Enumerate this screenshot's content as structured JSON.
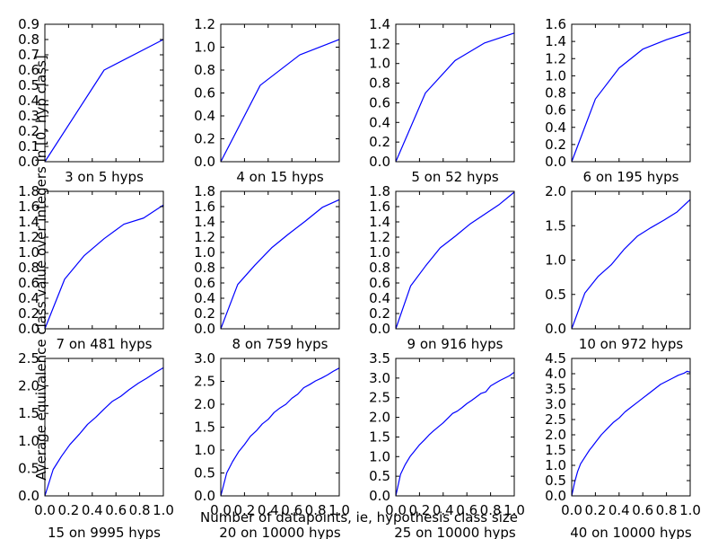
{
  "chart_data": {
    "type": "line",
    "layout": "3x4 grid of subplots",
    "xlabel": "Number of datapoints, ie, hypothesis class size",
    "ylabel": "Average equivalence class value over integers in [0, hyp class]",
    "xlim": [
      0.0,
      1.0
    ],
    "x_ticks": [
      "0.0",
      "0.2",
      "0.4",
      "0.6",
      "0.8",
      "1.0"
    ],
    "series_color": "#0000ff",
    "panels": [
      {
        "title": "3 on 5 hyps",
        "ylim": [
          0.0,
          0.9
        ],
        "y_ticks": [
          "0.0",
          "0.1",
          "0.2",
          "0.3",
          "0.4",
          "0.5",
          "0.6",
          "0.7",
          "0.8",
          "0.9"
        ],
        "x": [
          0.0,
          0.5,
          1.0
        ],
        "y": [
          0.0,
          0.6,
          0.8
        ]
      },
      {
        "title": "4 on 15 hyps",
        "ylim": [
          0.0,
          1.2
        ],
        "y_ticks": [
          "0.0",
          "0.2",
          "0.4",
          "0.6",
          "0.8",
          "1.0",
          "1.2"
        ],
        "x": [
          0.0,
          0.333,
          0.667,
          1.0
        ],
        "y": [
          0.0,
          0.667,
          0.933,
          1.067
        ]
      },
      {
        "title": "5 on 52 hyps",
        "ylim": [
          0.0,
          1.4
        ],
        "y_ticks": [
          "0.0",
          "0.2",
          "0.4",
          "0.6",
          "0.8",
          "1.0",
          "1.2",
          "1.4"
        ],
        "x": [
          0.0,
          0.25,
          0.5,
          0.75,
          1.0
        ],
        "y": [
          0.0,
          0.7,
          1.03,
          1.21,
          1.31
        ]
      },
      {
        "title": "6 on 195 hyps",
        "ylim": [
          0.0,
          1.6
        ],
        "y_ticks": [
          "0.0",
          "0.2",
          "0.4",
          "0.6",
          "0.8",
          "1.0",
          "1.2",
          "1.4",
          "1.6"
        ],
        "x": [
          0.0,
          0.2,
          0.4,
          0.6,
          0.8,
          1.0
        ],
        "y": [
          0.0,
          0.73,
          1.09,
          1.31,
          1.42,
          1.51
        ]
      },
      {
        "title": "7 on 481 hyps",
        "ylim": [
          0.0,
          1.8
        ],
        "y_ticks": [
          "0.0",
          "0.2",
          "0.4",
          "0.6",
          "0.8",
          "1.0",
          "1.2",
          "1.4",
          "1.6",
          "1.8"
        ],
        "x": [
          0.0,
          0.167,
          0.333,
          0.5,
          0.667,
          0.833,
          1.0
        ],
        "y": [
          0.0,
          0.65,
          0.96,
          1.18,
          1.37,
          1.45,
          1.62
        ]
      },
      {
        "title": "8 on 759 hyps",
        "ylim": [
          0.0,
          1.8
        ],
        "y_ticks": [
          "0.0",
          "0.2",
          "0.4",
          "0.6",
          "0.8",
          "1.0",
          "1.2",
          "1.4",
          "1.6",
          "1.8"
        ],
        "x": [
          0.0,
          0.143,
          0.286,
          0.429,
          0.571,
          0.714,
          0.857,
          1.0
        ],
        "y": [
          0.0,
          0.58,
          0.83,
          1.06,
          1.24,
          1.41,
          1.59,
          1.69
        ]
      },
      {
        "title": "9 on 916 hyps",
        "ylim": [
          0.0,
          1.8
        ],
        "y_ticks": [
          "0.0",
          "0.2",
          "0.4",
          "0.6",
          "0.8",
          "1.0",
          "1.2",
          "1.4",
          "1.6",
          "1.8"
        ],
        "x": [
          0.0,
          0.125,
          0.25,
          0.375,
          0.5,
          0.625,
          0.75,
          0.875,
          1.0
        ],
        "y": [
          0.0,
          0.56,
          0.82,
          1.06,
          1.21,
          1.37,
          1.5,
          1.63,
          1.79
        ]
      },
      {
        "title": "10 on 972 hyps",
        "ylim": [
          0.0,
          2.0
        ],
        "y_ticks": [
          "0.0",
          "0.5",
          "1.0",
          "1.5",
          "2.0"
        ],
        "x": [
          0.0,
          0.111,
          0.222,
          0.333,
          0.444,
          0.556,
          0.667,
          0.778,
          0.889,
          1.0
        ],
        "y": [
          0.0,
          0.52,
          0.76,
          0.93,
          1.16,
          1.35,
          1.47,
          1.58,
          1.7,
          1.88
        ]
      },
      {
        "title": "15 on 9995 hyps",
        "ylim": [
          0.0,
          2.5
        ],
        "y_ticks": [
          "0.0",
          "0.5",
          "1.0",
          "1.5",
          "2.0",
          "2.5"
        ],
        "x": [
          0.0,
          0.07,
          0.14,
          0.21,
          0.29,
          0.36,
          0.43,
          0.5,
          0.57,
          0.64,
          0.71,
          0.79,
          0.86,
          0.93,
          1.0
        ],
        "y": [
          0.0,
          0.48,
          0.72,
          0.93,
          1.12,
          1.3,
          1.43,
          1.58,
          1.72,
          1.81,
          1.93,
          2.05,
          2.14,
          2.24,
          2.33
        ]
      },
      {
        "title": "20 on 10000 hyps",
        "ylim": [
          0.0,
          3.0
        ],
        "y_ticks": [
          "0.0",
          "0.5",
          "1.0",
          "1.5",
          "2.0",
          "2.5",
          "3.0"
        ],
        "x": [
          0.0,
          0.05,
          0.1,
          0.15,
          0.2,
          0.25,
          0.3,
          0.35,
          0.4,
          0.45,
          0.5,
          0.55,
          0.6,
          0.65,
          0.7,
          0.75,
          0.8,
          0.85,
          0.9,
          0.95,
          1.0
        ],
        "y": [
          0.0,
          0.5,
          0.75,
          0.96,
          1.12,
          1.3,
          1.42,
          1.57,
          1.67,
          1.82,
          1.92,
          2.0,
          2.13,
          2.22,
          2.36,
          2.43,
          2.51,
          2.57,
          2.64,
          2.72,
          2.79
        ]
      },
      {
        "title": "25 on 10000 hyps",
        "ylim": [
          0.0,
          3.5
        ],
        "y_ticks": [
          "0.0",
          "0.5",
          "1.0",
          "1.5",
          "2.0",
          "2.5",
          "3.0",
          "3.5"
        ],
        "x": [
          0.0,
          0.04,
          0.08,
          0.12,
          0.16,
          0.2,
          0.24,
          0.28,
          0.32,
          0.36,
          0.4,
          0.44,
          0.48,
          0.52,
          0.56,
          0.6,
          0.64,
          0.68,
          0.72,
          0.76,
          0.8,
          0.84,
          0.88,
          0.92,
          0.96,
          1.0
        ],
        "y": [
          0.0,
          0.55,
          0.8,
          1.0,
          1.15,
          1.3,
          1.42,
          1.55,
          1.66,
          1.76,
          1.86,
          1.98,
          2.1,
          2.16,
          2.25,
          2.35,
          2.43,
          2.52,
          2.61,
          2.65,
          2.8,
          2.87,
          2.94,
          3.0,
          3.06,
          3.15
        ]
      },
      {
        "title": "40 on 10000 hyps",
        "ylim": [
          0.0,
          4.5
        ],
        "y_ticks": [
          "0.0",
          "0.5",
          "1.0",
          "1.5",
          "2.0",
          "2.5",
          "3.0",
          "3.5",
          "4.0",
          "4.5"
        ],
        "x": [
          0.0,
          0.025,
          0.05,
          0.075,
          0.1,
          0.125,
          0.15,
          0.175,
          0.2,
          0.25,
          0.3,
          0.35,
          0.4,
          0.45,
          0.5,
          0.55,
          0.6,
          0.65,
          0.7,
          0.75,
          0.8,
          0.85,
          0.9,
          0.95,
          0.975,
          1.0
        ],
        "y": [
          0.0,
          0.45,
          0.8,
          1.05,
          1.2,
          1.35,
          1.5,
          1.62,
          1.75,
          2.0,
          2.2,
          2.4,
          2.55,
          2.75,
          2.9,
          3.05,
          3.2,
          3.35,
          3.5,
          3.65,
          3.75,
          3.85,
          3.95,
          4.02,
          4.08,
          4.05
        ]
      }
    ]
  }
}
